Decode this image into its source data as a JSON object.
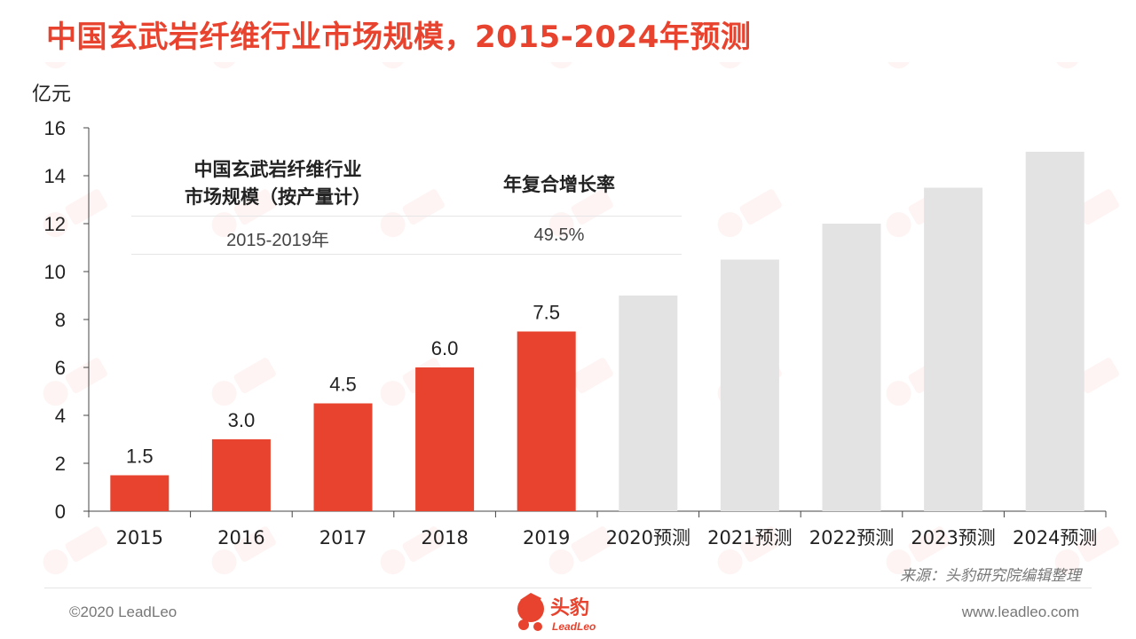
{
  "page": {
    "title": "中国玄武岩纤维行业市场规模，2015-2024年预测",
    "unit": "亿元",
    "source": "来源：头豹研究院编辑整理",
    "copyright": "©2020 LeadLeo",
    "website": "www.leadleo.com",
    "logo": {
      "name": "头豹",
      "subtitle": "LeadLeo"
    },
    "accent_color": "#e8432e",
    "forecast_color": "#e3e3e3"
  },
  "info_table": {
    "col1_header_line1": "中国玄武岩纤维行业",
    "col1_header_line2": "市场规模（按产量计）",
    "col2_header": "年复合增长率",
    "col1_value": "2015-2019年",
    "col2_value": "49.5%"
  },
  "chart_data": {
    "type": "bar",
    "title": "中国玄武岩纤维行业市场规模，2015-2024年预测",
    "ylabel": "亿元",
    "xlabel": "",
    "ylim": [
      0,
      16
    ],
    "yticks": [
      0,
      2,
      4,
      6,
      8,
      10,
      12,
      14,
      16
    ],
    "grid": false,
    "categories": [
      "2015",
      "2016",
      "2017",
      "2018",
      "2019",
      "2020预测",
      "2021预测",
      "2022预测",
      "2023预测",
      "2024预测"
    ],
    "values": [
      1.5,
      3.0,
      4.5,
      6.0,
      7.5,
      9.0,
      10.5,
      12.0,
      13.5,
      15.0
    ],
    "data_labels": [
      "1.5",
      "3.0",
      "4.5",
      "6.0",
      "7.5",
      "",
      "",
      "",
      "",
      ""
    ],
    "forecast": [
      false,
      false,
      false,
      false,
      false,
      true,
      true,
      true,
      true,
      true
    ]
  }
}
